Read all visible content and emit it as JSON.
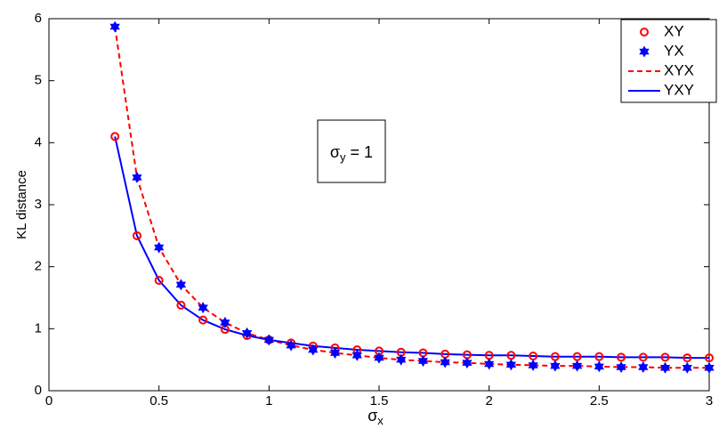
{
  "chart_data": {
    "type": "line",
    "x": [
      0.3,
      0.4,
      0.5,
      0.6,
      0.7,
      0.8,
      0.9,
      1.0,
      1.1,
      1.2,
      1.3,
      1.4,
      1.5,
      1.6,
      1.7,
      1.8,
      1.9,
      2.0,
      2.1,
      2.2,
      2.3,
      2.4,
      2.5,
      2.6,
      2.7,
      2.8,
      2.9,
      3.0
    ],
    "series": [
      {
        "name": "XY",
        "color": "#ff0000",
        "marker": "circle",
        "line": "none",
        "values": [
          4.1,
          2.5,
          1.78,
          1.38,
          1.14,
          0.99,
          0.89,
          0.82,
          0.77,
          0.72,
          0.69,
          0.66,
          0.64,
          0.62,
          0.61,
          0.59,
          0.58,
          0.57,
          0.57,
          0.56,
          0.55,
          0.55,
          0.55,
          0.54,
          0.54,
          0.54,
          0.53,
          0.53
        ]
      },
      {
        "name": "YX",
        "color": "#0000ff",
        "marker": "star",
        "line": "none",
        "values": [
          5.87,
          3.44,
          2.31,
          1.71,
          1.34,
          1.1,
          0.93,
          0.82,
          0.73,
          0.66,
          0.61,
          0.57,
          0.53,
          0.5,
          0.48,
          0.46,
          0.45,
          0.43,
          0.42,
          0.41,
          0.4,
          0.4,
          0.39,
          0.38,
          0.38,
          0.37,
          0.37,
          0.37
        ]
      },
      {
        "name": "XYX",
        "color": "#ff0000",
        "marker": "none",
        "line": "dashed",
        "values": [
          5.87,
          3.44,
          2.31,
          1.71,
          1.34,
          1.1,
          0.93,
          0.82,
          0.73,
          0.66,
          0.61,
          0.57,
          0.53,
          0.5,
          0.48,
          0.46,
          0.45,
          0.43,
          0.42,
          0.41,
          0.4,
          0.4,
          0.39,
          0.38,
          0.38,
          0.37,
          0.37,
          0.37
        ]
      },
      {
        "name": "YXY",
        "color": "#0000ff",
        "marker": "none",
        "line": "solid",
        "values": [
          4.1,
          2.5,
          1.78,
          1.38,
          1.14,
          0.99,
          0.89,
          0.82,
          0.77,
          0.72,
          0.69,
          0.66,
          0.64,
          0.62,
          0.61,
          0.59,
          0.58,
          0.57,
          0.57,
          0.56,
          0.55,
          0.55,
          0.55,
          0.54,
          0.54,
          0.54,
          0.53,
          0.53
        ]
      }
    ],
    "xlim": [
      0,
      3
    ],
    "xticks": [
      0,
      0.5,
      1,
      1.5,
      2,
      2.5,
      3
    ],
    "ylim": [
      0,
      6
    ],
    "yticks": [
      0,
      1,
      2,
      3,
      4,
      5,
      6
    ],
    "x_label": {
      "symbol": "σ",
      "subscript": "x"
    },
    "y_label": "KL distance",
    "annotation": {
      "symbol": "σ",
      "subscript": "y",
      "text": "= 1"
    },
    "legend": "top-right"
  }
}
